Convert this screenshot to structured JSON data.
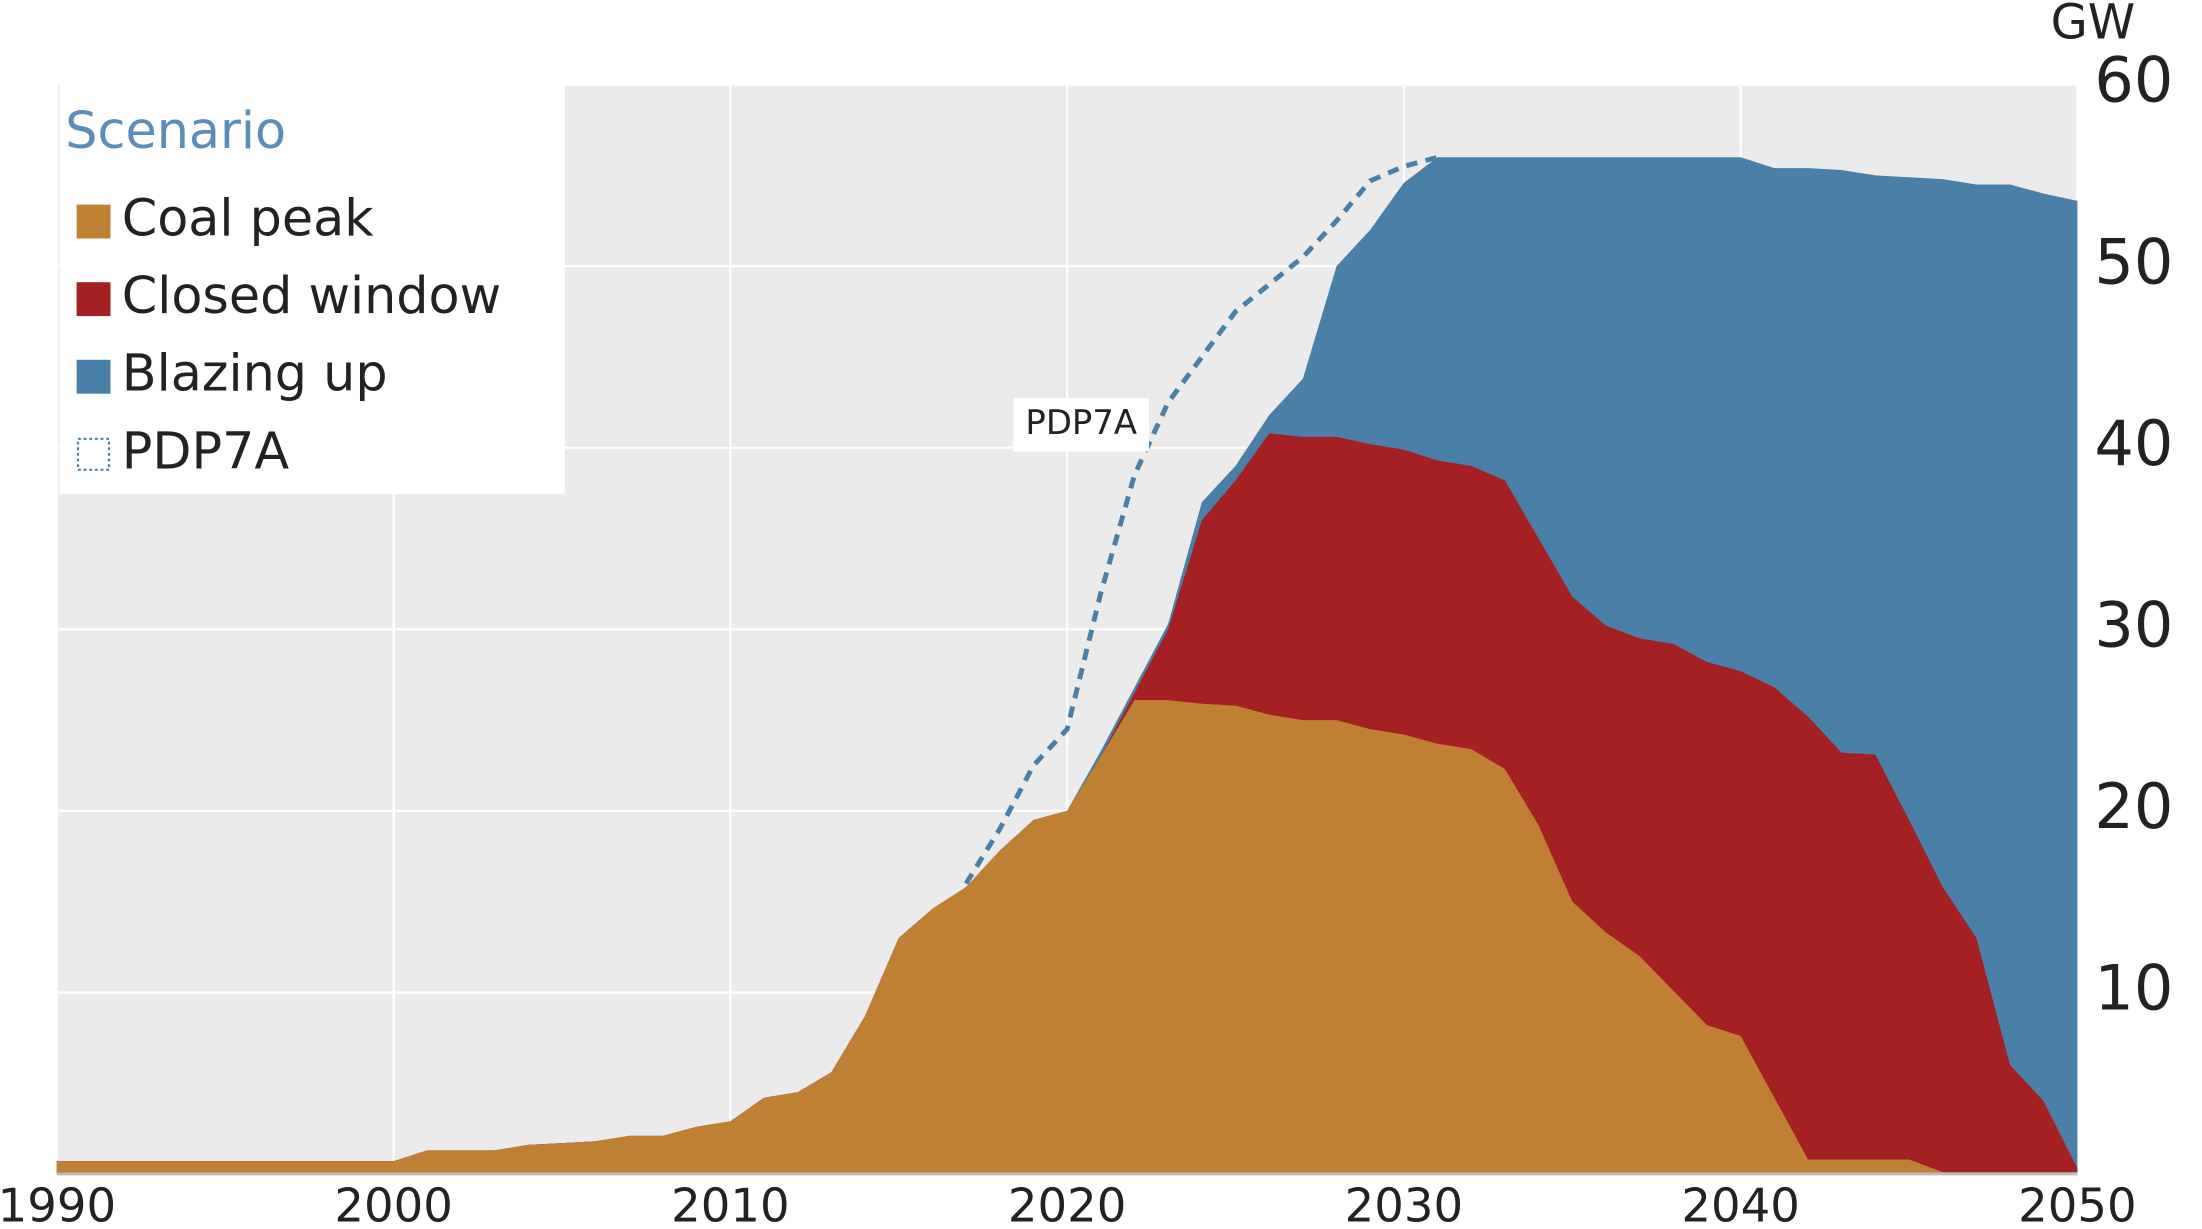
{
  "chart_data": {
    "type": "area",
    "y_unit": "GW",
    "legend_title": "Scenario",
    "legend": "top-left",
    "grid": true,
    "annotation": "PDP7A",
    "x": [
      1990,
      1991,
      1992,
      1993,
      1994,
      1995,
      1996,
      1997,
      1998,
      1999,
      2000,
      2001,
      2002,
      2003,
      2004,
      2005,
      2006,
      2007,
      2008,
      2009,
      2010,
      2011,
      2012,
      2013,
      2014,
      2015,
      2016,
      2017,
      2018,
      2019,
      2020,
      2021,
      2022,
      2023,
      2024,
      2025,
      2026,
      2027,
      2028,
      2029,
      2030,
      2031,
      2032,
      2033,
      2034,
      2035,
      2036,
      2037,
      2038,
      2039,
      2040,
      2041,
      2042,
      2043,
      2044,
      2045,
      2046,
      2047,
      2048,
      2049,
      2050
    ],
    "xlim": [
      1990,
      2050
    ],
    "xticks": [
      1990,
      2000,
      2010,
      2020,
      2030,
      2040,
      2050
    ],
    "ylim": [
      0,
      60
    ],
    "yticks": [
      10,
      20,
      30,
      40,
      50,
      60
    ],
    "series": [
      {
        "name": "Coal peak",
        "color": "#bf8033",
        "style": "area",
        "values": [
          0.7,
          0.7,
          0.7,
          0.7,
          0.7,
          0.7,
          0.7,
          0.7,
          0.7,
          0.7,
          0.7,
          1.3,
          1.3,
          1.3,
          1.6,
          1.7,
          1.8,
          2.1,
          2.1,
          2.6,
          2.9,
          4.2,
          4.5,
          5.6,
          8.7,
          13,
          14.6,
          15.8,
          17.8,
          19.5,
          20,
          23,
          26.1,
          26.1,
          25.9,
          25.8,
          25.3,
          25,
          25,
          24.5,
          24.2,
          23.7,
          23.4,
          22.3,
          19.2,
          15,
          13.3,
          12,
          10.1,
          8.2,
          7.6,
          4.2,
          0.8,
          0.8,
          0.8,
          0.8,
          0.1,
          0.1,
          0.1,
          0.1,
          0.1
        ]
      },
      {
        "name": "Closed window",
        "color": "#a52022",
        "style": "area",
        "values": [
          0.7,
          0.7,
          0.7,
          0.7,
          0.7,
          0.7,
          0.7,
          0.7,
          0.7,
          0.7,
          0.7,
          1.3,
          1.3,
          1.3,
          1.6,
          1.7,
          1.8,
          2.1,
          2.1,
          2.6,
          2.9,
          4.2,
          4.5,
          5.6,
          8.7,
          13,
          14.6,
          15.8,
          17.8,
          19.5,
          20,
          23,
          26.5,
          30,
          36,
          38.2,
          40.8,
          40.6,
          40.6,
          40.2,
          39.9,
          39.3,
          39,
          38.2,
          35,
          31.8,
          30.2,
          29.5,
          29.2,
          28.2,
          27.7,
          26.8,
          25.2,
          23.2,
          23.1,
          19.5,
          15.8,
          13,
          6,
          4,
          0.3
        ]
      },
      {
        "name": "Blazing up",
        "color": "#4a7fa8",
        "style": "area",
        "values": [
          0.7,
          0.7,
          0.7,
          0.7,
          0.7,
          0.7,
          0.7,
          0.7,
          0.7,
          0.7,
          0.7,
          1.3,
          1.3,
          1.3,
          1.6,
          1.7,
          1.8,
          2.1,
          2.1,
          2.6,
          2.9,
          4.2,
          4.5,
          5.6,
          8.7,
          13,
          14.6,
          15.8,
          17.8,
          19.5,
          20,
          23.3,
          26.8,
          30.3,
          37,
          39,
          41.8,
          43.8,
          50,
          52,
          54.6,
          56,
          56,
          56,
          56,
          56,
          56,
          56,
          56,
          56,
          56,
          55.4,
          55.4,
          55.3,
          55,
          54.9,
          54.8,
          54.5,
          54.5,
          54,
          53.6
        ]
      },
      {
        "name": "PDP7A",
        "color": "#4a7fa8",
        "style": "dashed",
        "values": [
          null,
          null,
          null,
          null,
          null,
          null,
          null,
          null,
          null,
          null,
          null,
          null,
          null,
          null,
          null,
          null,
          null,
          null,
          null,
          null,
          null,
          null,
          null,
          null,
          null,
          null,
          null,
          16,
          19,
          22.5,
          24.5,
          32,
          38.5,
          42.5,
          45,
          47.5,
          49,
          50.5,
          52.5,
          54.7,
          55.5,
          56,
          null,
          null,
          null,
          null,
          null,
          null,
          null,
          null,
          null,
          null,
          null,
          null,
          null,
          null,
          null,
          null,
          null,
          null,
          null
        ]
      }
    ]
  }
}
